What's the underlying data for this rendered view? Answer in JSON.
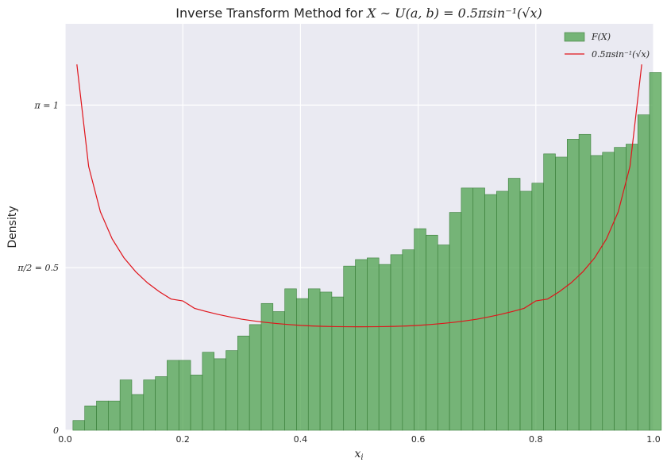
{
  "chart_data": {
    "type": "bar",
    "title": {
      "prefix": "Inverse Transform Method for ",
      "math": "X ∼ U(a, b) = 0.5πsin⁻¹(√x)"
    },
    "xlabel": "x_i",
    "xlabel_main": "x",
    "xlabel_sub": "i",
    "ylabel": "Density",
    "xlim": [
      0,
      1
    ],
    "ylim": [
      0,
      1.25
    ],
    "x_ticks": [
      {
        "value": 0.0,
        "label": "0.0"
      },
      {
        "value": 0.2,
        "label": "0.2"
      },
      {
        "value": 0.4,
        "label": "0.4"
      },
      {
        "value": 0.6,
        "label": "0.6"
      },
      {
        "value": 0.8,
        "label": "0.8"
      },
      {
        "value": 1.0,
        "label": "1.0"
      }
    ],
    "y_ticks": [
      {
        "value": 0,
        "label": "0"
      },
      {
        "value": 0.5,
        "label": "π/2 = 0.5"
      },
      {
        "value": 1,
        "label": "π = 1"
      }
    ],
    "grid": true,
    "legend_position": "top-right",
    "legend": [
      {
        "label": "F(X)",
        "kind": "patch",
        "color": "#4ea24e"
      },
      {
        "label": "0.5πsin⁻¹(√x)",
        "kind": "line",
        "color": "#e0141b"
      }
    ],
    "histogram": {
      "name": "F(X)",
      "color": "#4ea24e",
      "bin_start": 0.0133,
      "bin_width": 0.02,
      "values": [
        0.03,
        0.075,
        0.09,
        0.09,
        0.155,
        0.11,
        0.155,
        0.165,
        0.215,
        0.215,
        0.17,
        0.24,
        0.22,
        0.245,
        0.29,
        0.325,
        0.39,
        0.365,
        0.435,
        0.405,
        0.435,
        0.425,
        0.41,
        0.505,
        0.525,
        0.53,
        0.51,
        0.54,
        0.555,
        0.62,
        0.6,
        0.57,
        0.67,
        0.745,
        0.745,
        0.725,
        0.735,
        0.775,
        0.735,
        0.76,
        0.85,
        0.84,
        0.895,
        0.91,
        0.845,
        0.855,
        0.87,
        0.88,
        0.97,
        1.1
      ]
    },
    "curve": {
      "name": "0.5πsin⁻¹(√x)",
      "color": "#e0141b",
      "x": [
        0.02,
        0.04,
        0.06,
        0.08,
        0.1,
        0.12,
        0.14,
        0.16,
        0.18,
        0.2,
        0.22,
        0.24,
        0.26,
        0.28,
        0.3,
        0.32,
        0.34,
        0.36,
        0.38,
        0.4,
        0.42,
        0.44,
        0.46,
        0.48,
        0.5,
        0.52,
        0.54,
        0.56,
        0.58,
        0.6,
        0.62,
        0.64,
        0.66,
        0.68,
        0.7,
        0.72,
        0.74,
        0.76,
        0.78,
        0.8,
        0.82,
        0.84,
        0.86,
        0.88,
        0.9,
        0.92,
        0.94,
        0.96,
        0.98
      ],
      "y": [
        1.1252,
        0.8113,
        0.6716,
        0.5884,
        0.5305,
        0.4875,
        0.4534,
        0.4263,
        0.4036,
        0.3979,
        0.3749,
        0.3652,
        0.3563,
        0.3486,
        0.3417,
        0.3364,
        0.3319,
        0.3282,
        0.3252,
        0.3226,
        0.3208,
        0.3195,
        0.3187,
        0.3184,
        0.3183,
        0.3184,
        0.3187,
        0.3195,
        0.3208,
        0.3226,
        0.3252,
        0.3282,
        0.3319,
        0.3364,
        0.3417,
        0.3486,
        0.3563,
        0.3652,
        0.3749,
        0.3979,
        0.4036,
        0.4263,
        0.4534,
        0.4875,
        0.5305,
        0.5884,
        0.6716,
        0.8113,
        1.1252
      ]
    }
  }
}
